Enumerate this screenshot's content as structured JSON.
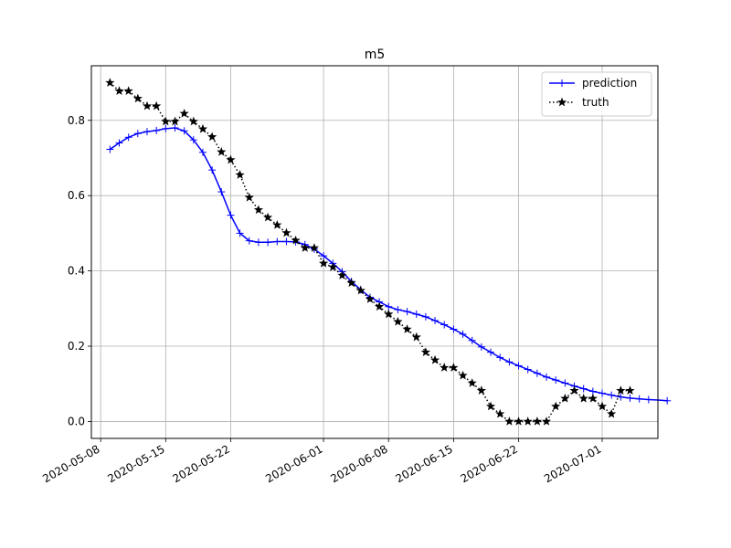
{
  "chart_data": {
    "type": "line",
    "title": "m5",
    "xlabel": "",
    "ylabel": "",
    "x_range": [
      "2020-05-07",
      "2020-07-07"
    ],
    "ylim": [
      -0.045,
      0.945
    ],
    "x_ticks": [
      "2020-05-08",
      "2020-05-15",
      "2020-05-22",
      "2020-06-01",
      "2020-06-08",
      "2020-06-15",
      "2020-06-22",
      "2020-07-01"
    ],
    "y_ticks": [
      "0.0",
      "0.2",
      "0.4",
      "0.6",
      "0.8"
    ],
    "grid": true,
    "legend": "top-right",
    "series": [
      {
        "name": "prediction",
        "color": "#0000ff",
        "marker": "plus",
        "line_style": "solid",
        "start_date": "2020-05-09",
        "values": [
          0.723,
          0.74,
          0.755,
          0.765,
          0.77,
          0.773,
          0.778,
          0.78,
          0.772,
          0.748,
          0.715,
          0.668,
          0.61,
          0.548,
          0.5,
          0.48,
          0.476,
          0.476,
          0.478,
          0.478,
          0.477,
          0.47,
          0.458,
          0.44,
          0.42,
          0.398,
          0.372,
          0.35,
          0.33,
          0.318,
          0.305,
          0.297,
          0.292,
          0.285,
          0.278,
          0.268,
          0.257,
          0.245,
          0.232,
          0.215,
          0.198,
          0.184,
          0.17,
          0.158,
          0.148,
          0.138,
          0.128,
          0.118,
          0.11,
          0.102,
          0.094,
          0.087,
          0.08,
          0.075,
          0.07,
          0.065,
          0.062,
          0.06,
          0.058,
          0.057,
          0.055
        ]
      },
      {
        "name": "truth",
        "color": "#000000",
        "marker": "star",
        "line_style": "dotted",
        "start_date": "2020-05-09",
        "values": [
          0.9,
          0.878,
          0.878,
          0.858,
          0.838,
          0.838,
          0.797,
          0.797,
          0.818,
          0.797,
          0.777,
          0.756,
          0.716,
          0.695,
          0.655,
          0.595,
          0.562,
          0.542,
          0.522,
          0.501,
          0.481,
          0.461,
          0.461,
          0.42,
          0.41,
          0.388,
          0.368,
          0.348,
          0.325,
          0.305,
          0.285,
          0.265,
          0.245,
          0.224,
          0.184,
          0.163,
          0.143,
          0.143,
          0.122,
          0.102,
          0.082,
          0.04,
          0.02,
          0.0,
          0.0,
          0.0,
          0.0,
          0.0,
          0.04,
          0.061,
          0.082,
          0.061,
          0.061,
          0.04,
          0.02,
          0.082,
          0.082
        ]
      }
    ]
  }
}
